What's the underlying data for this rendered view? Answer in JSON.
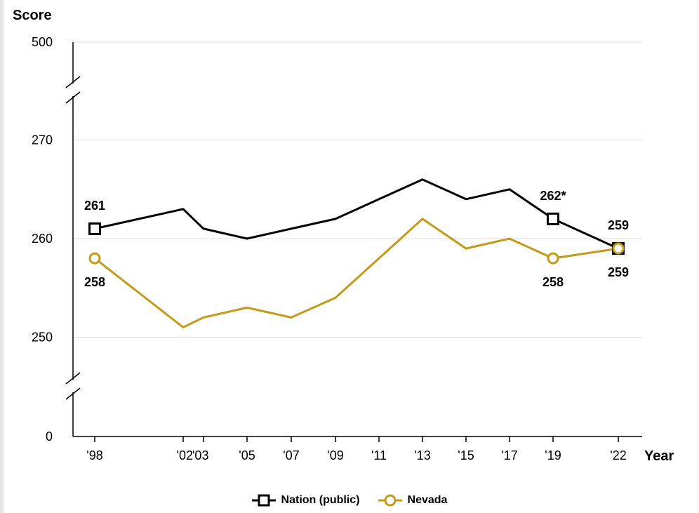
{
  "chart_data": {
    "type": "line",
    "ylabel": "Score",
    "xlabel": "Year",
    "y_ticks": [
      {
        "value": 500,
        "label": "500"
      },
      {
        "value": 270,
        "label": "270"
      },
      {
        "value": 260,
        "label": "260"
      },
      {
        "value": 250,
        "label": "250"
      },
      {
        "value": 0,
        "label": "0"
      }
    ],
    "y_axis_breaks": [
      "between 500 and 270",
      "between 250 and 0"
    ],
    "x_ticks": [
      {
        "year": 1998,
        "label": "'98"
      },
      {
        "year": 2002,
        "label": "'02"
      },
      {
        "year": 2003,
        "label": "'03"
      },
      {
        "year": 2005,
        "label": "'05"
      },
      {
        "year": 2007,
        "label": "'07"
      },
      {
        "year": 2009,
        "label": "'09"
      },
      {
        "year": 2011,
        "label": "'11"
      },
      {
        "year": 2013,
        "label": "'13"
      },
      {
        "year": 2015,
        "label": "'15"
      },
      {
        "year": 2017,
        "label": "'17"
      },
      {
        "year": 2019,
        "label": "'19"
      },
      {
        "year": 2022,
        "label": "'22"
      }
    ],
    "grid": true,
    "legend_position": "bottom-center",
    "series": [
      {
        "name": "Nation (public)",
        "color": "#000000",
        "marker": "square",
        "points": [
          {
            "x": 1998,
            "y": 261
          },
          {
            "x": 2002,
            "y": 263
          },
          {
            "x": 2003,
            "y": 261
          },
          {
            "x": 2005,
            "y": 260
          },
          {
            "x": 2007,
            "y": 261
          },
          {
            "x": 2009,
            "y": 262
          },
          {
            "x": 2011,
            "y": 264
          },
          {
            "x": 2013,
            "y": 266
          },
          {
            "x": 2015,
            "y": 264
          },
          {
            "x": 2017,
            "y": 265
          },
          {
            "x": 2019,
            "y": 262
          },
          {
            "x": 2022,
            "y": 259
          }
        ],
        "marked": [
          {
            "x": 1998,
            "y": 261,
            "label": "261"
          },
          {
            "x": 2019,
            "y": 262,
            "label": "262*"
          },
          {
            "x": 2022,
            "y": 259,
            "label": "259"
          }
        ]
      },
      {
        "name": "Nevada",
        "color": "#c49a1a",
        "marker": "circle",
        "points": [
          {
            "x": 1998,
            "y": 258
          },
          {
            "x": 2002,
            "y": 251
          },
          {
            "x": 2003,
            "y": 252
          },
          {
            "x": 2005,
            "y": 253
          },
          {
            "x": 2007,
            "y": 252
          },
          {
            "x": 2009,
            "y": 254
          },
          {
            "x": 2011,
            "y": 258
          },
          {
            "x": 2013,
            "y": 262
          },
          {
            "x": 2015,
            "y": 259
          },
          {
            "x": 2017,
            "y": 260
          },
          {
            "x": 2019,
            "y": 258
          },
          {
            "x": 2022,
            "y": 259
          }
        ],
        "marked": [
          {
            "x": 1998,
            "y": 258,
            "label": "258"
          },
          {
            "x": 2019,
            "y": 258,
            "label": "258"
          },
          {
            "x": 2022,
            "y": 259,
            "label": "259"
          }
        ]
      }
    ]
  }
}
